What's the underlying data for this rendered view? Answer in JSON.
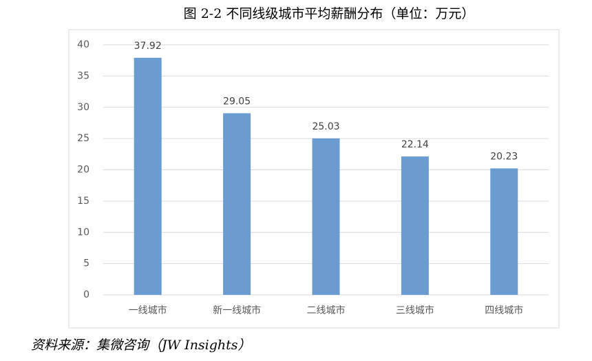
{
  "chart_data": {
    "type": "bar",
    "title": "图 2-2 不同线级城市平均薪酬分布（单位：万元）",
    "categories": [
      "一线城市",
      "新一线城市",
      "二线城市",
      "三线城市",
      "四线城市"
    ],
    "values": [
      37.92,
      29.05,
      25.03,
      22.14,
      20.23
    ],
    "color": "#6a9bd1",
    "ylim": [
      0,
      40
    ],
    "yticks": [
      0,
      5,
      10,
      15,
      20,
      25,
      30,
      35,
      40
    ],
    "grid": true,
    "source": "资料来源：集微咨询（JW Insights）"
  }
}
